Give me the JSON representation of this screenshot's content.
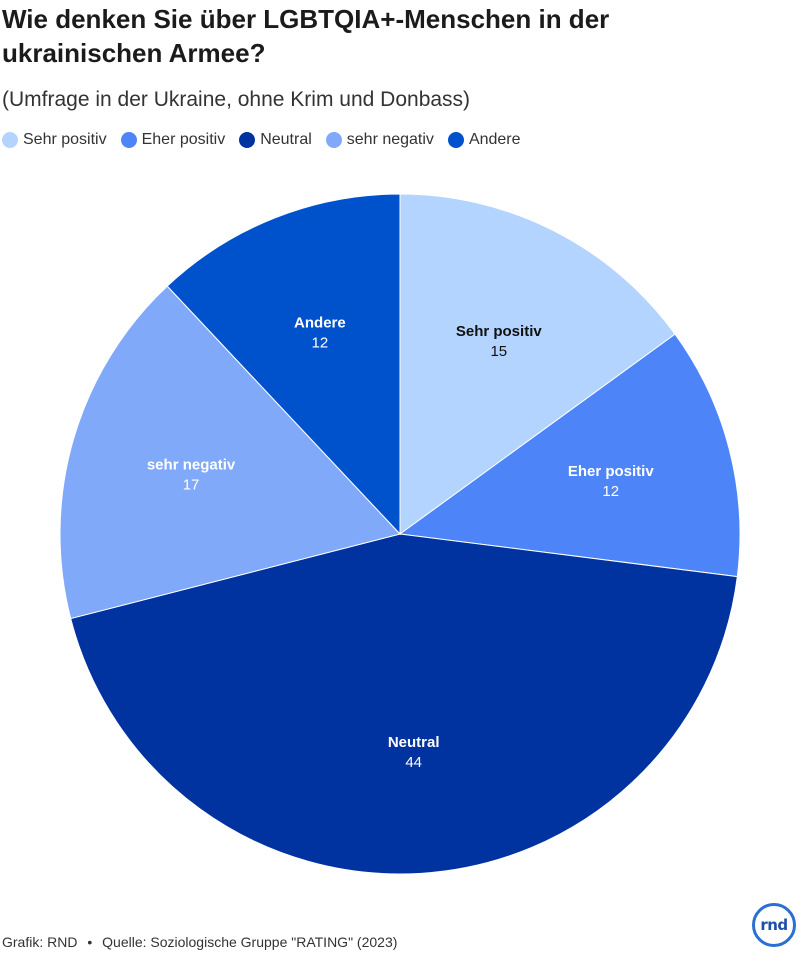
{
  "title": "Wie denken Sie über LGBTQIA+-Menschen in der ukrainischen Armee?",
  "subtitle": "(Umfrage in der Ukraine, ohne Krim und Donbass)",
  "footer": {
    "credit": "Grafik: RND",
    "separator": "•",
    "source": "Quelle: Soziologische Gruppe \"RATING\" (2023)"
  },
  "logo": {
    "text": "rnd"
  },
  "chart_data": {
    "type": "pie",
    "title": "Wie denken Sie über LGBTQIA+-Menschen in der ukrainischen Armee?",
    "subtitle": "(Umfrage in der Ukraine, ohne Krim und Donbass)",
    "legend_position": "top-left",
    "slices": [
      {
        "label": "Sehr positiv",
        "value": 15,
        "color": "#b3d4ff",
        "label_color": "#111111"
      },
      {
        "label": "Eher positiv",
        "value": 12,
        "color": "#4d84f8",
        "label_color": "#ffffff"
      },
      {
        "label": "Neutral",
        "value": 44,
        "color": "#0033a0",
        "label_color": "#ffffff"
      },
      {
        "label": "sehr negativ",
        "value": 17,
        "color": "#80a9fa",
        "label_color": "#ffffff"
      },
      {
        "label": "Andere",
        "value": 12,
        "color": "#0052cc",
        "label_color": "#ffffff"
      }
    ]
  }
}
